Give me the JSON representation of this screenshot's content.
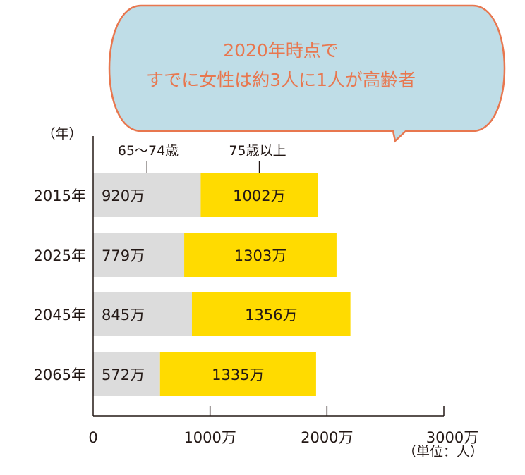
{
  "callout": {
    "line1": "2020年時点で",
    "line2": "すでに女性は約3人に1人が高齢者",
    "fill_color": "#bfdde7",
    "stroke_color": "#e8774f",
    "text_color": "#e8774f"
  },
  "chart_data": {
    "type": "bar",
    "orientation": "horizontal",
    "stacked": true,
    "categories": [
      "2015年",
      "2025年",
      "2045年",
      "2065年"
    ],
    "series": [
      {
        "name": "65〜74歳",
        "values": [
          920,
          779,
          845,
          572
        ],
        "value_labels": [
          "920万",
          "779万",
          "845万",
          "572万"
        ],
        "color": "#dcdcdc"
      },
      {
        "name": "75歳以上",
        "values": [
          1002,
          1303,
          1356,
          1335
        ],
        "value_labels": [
          "1002万",
          "1303万",
          "1356万",
          "1335万"
        ],
        "color": "#ffdb00"
      }
    ],
    "xlim": [
      0,
      3000
    ],
    "xticks": [
      0,
      1000,
      2000,
      3000
    ],
    "xtick_labels": [
      "0",
      "1000万",
      "2000万",
      "3000万"
    ],
    "ylabel": "（年）",
    "unit_label": "（単位：人）",
    "grid": false
  }
}
